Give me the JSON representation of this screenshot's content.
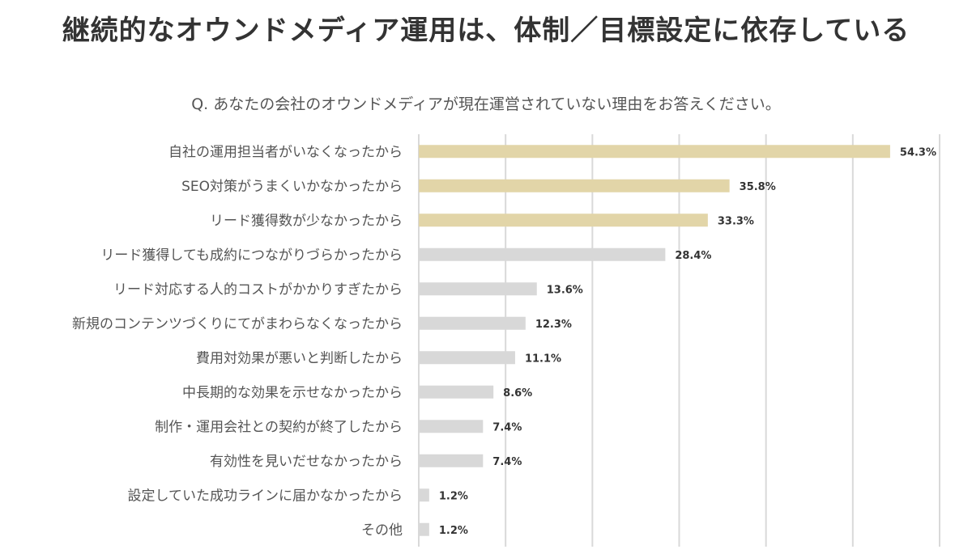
{
  "title": "継続的なオウンドメディア運用は、体制／目標設定に依存している",
  "question": "Q. あなたの会社のオウンドメディアが現在運営されていない理由をお答えください。",
  "colors": {
    "highlight": "#E2D5A8",
    "normal": "#D8D8D8",
    "grid": "#D9D9D9"
  },
  "chart_data": {
    "type": "bar",
    "orientation": "horizontal",
    "unit": "%",
    "xlim": [
      0,
      60
    ],
    "grid": true,
    "categories": [
      "自社の運用担当者がいなくなったから",
      "SEO対策がうまくいかなかったから",
      "リード獲得数が少なかったから",
      "リード獲得しても成約につながりづらかったから",
      "リード対応する人的コストがかかりすぎたから",
      "新規のコンテンツづくりにてがまわらなくなったから",
      "費用対効果が悪いと判断したから",
      "中長期的な効果を示せなかったから",
      "制作・運用会社との契約が終了したから",
      "有効性を見いだせなかったから",
      "設定していた成功ラインに届かなかったから",
      "その他"
    ],
    "values": [
      54.3,
      35.8,
      33.3,
      28.4,
      13.6,
      12.3,
      11.1,
      8.6,
      7.4,
      7.4,
      1.2,
      1.2
    ],
    "value_labels": [
      "54.3%",
      "35.8%",
      "33.3%",
      "28.4%",
      "13.6%",
      "12.3%",
      "11.1%",
      "8.6%",
      "7.4%",
      "7.4%",
      "1.2%",
      "1.2%"
    ],
    "highlighted": [
      true,
      true,
      true,
      false,
      false,
      false,
      false,
      false,
      false,
      false,
      false,
      false
    ]
  }
}
